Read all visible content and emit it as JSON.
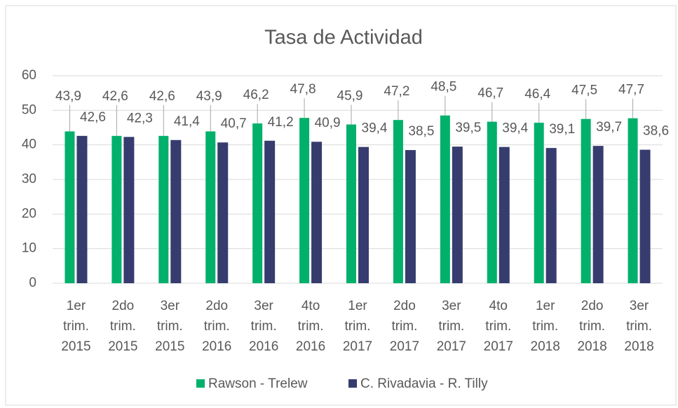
{
  "chart_data": {
    "type": "bar",
    "title": "Tasa de Actividad",
    "categories": [
      [
        "1er",
        "trim.",
        "2015"
      ],
      [
        "2do",
        "trim.",
        "2015"
      ],
      [
        "3er",
        "trim.",
        "2015"
      ],
      [
        "2do",
        "trim.",
        "2016"
      ],
      [
        "3er",
        "trim.",
        "2016"
      ],
      [
        "4to",
        "trim.",
        "2016"
      ],
      [
        "1er",
        "trim.",
        "2017"
      ],
      [
        "2do",
        "trim.",
        "2017"
      ],
      [
        "3er",
        "trim.",
        "2017"
      ],
      [
        "4to",
        "trim.",
        "2017"
      ],
      [
        "1er",
        "trim.",
        "2018"
      ],
      [
        "2do",
        "trim.",
        "2018"
      ],
      [
        "3er",
        "trim.",
        "2018"
      ]
    ],
    "series": [
      {
        "name": "Rawson - Trelew",
        "color": "#00b06b",
        "values": [
          43.9,
          42.6,
          42.6,
          43.9,
          46.2,
          47.8,
          45.9,
          47.2,
          48.5,
          46.7,
          46.4,
          47.5,
          47.7
        ],
        "value_labels": [
          "43,9",
          "42,6",
          "42,6",
          "43,9",
          "46,2",
          "47,8",
          "45,9",
          "47,2",
          "48,5",
          "46,7",
          "46,4",
          "47,5",
          "47,7"
        ]
      },
      {
        "name": "C. Rivadavia - R. Tilly",
        "color": "#363c6e",
        "values": [
          42.6,
          42.3,
          41.4,
          40.7,
          41.2,
          40.9,
          39.4,
          38.5,
          39.5,
          39.4,
          39.1,
          39.7,
          38.6
        ],
        "value_labels": [
          "42,6",
          "42,3",
          "41,4",
          "40,7",
          "41,2",
          "40,9",
          "39,4",
          "38,5",
          "39,5",
          "39,4",
          "39,1",
          "39,7",
          "38,6"
        ]
      }
    ],
    "ylim": [
      0,
      60
    ],
    "yticks": [
      0,
      10,
      20,
      30,
      40,
      50,
      60
    ],
    "grid": true,
    "legend": "bottom"
  }
}
